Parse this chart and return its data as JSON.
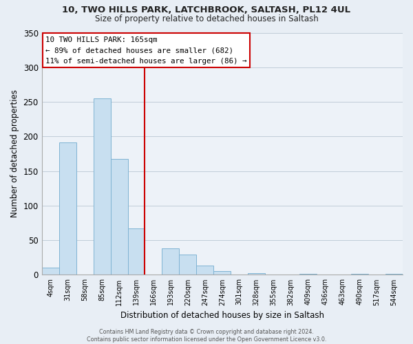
{
  "title1": "10, TWO HILLS PARK, LATCHBROOK, SALTASH, PL12 4UL",
  "title2": "Size of property relative to detached houses in Saltash",
  "xlabel": "Distribution of detached houses by size in Saltash",
  "ylabel": "Number of detached properties",
  "bar_labels": [
    "4sqm",
    "31sqm",
    "58sqm",
    "85sqm",
    "112sqm",
    "139sqm",
    "166sqm",
    "193sqm",
    "220sqm",
    "247sqm",
    "274sqm",
    "301sqm",
    "328sqm",
    "355sqm",
    "382sqm",
    "409sqm",
    "436sqm",
    "463sqm",
    "490sqm",
    "517sqm",
    "544sqm"
  ],
  "bar_values": [
    10,
    191,
    0,
    255,
    168,
    67,
    0,
    38,
    29,
    13,
    5,
    0,
    2,
    0,
    0,
    1,
    0,
    0,
    1,
    0,
    1
  ],
  "bar_color": "#c8dff0",
  "bar_edge_color": "#7fb3d3",
  "vline_x_index": 6,
  "vline_color": "#cc0000",
  "ylim": [
    0,
    350
  ],
  "yticks": [
    0,
    50,
    100,
    150,
    200,
    250,
    300,
    350
  ],
  "annotation_title": "10 TWO HILLS PARK: 165sqm",
  "annotation_line1": "← 89% of detached houses are smaller (682)",
  "annotation_line2": "11% of semi-detached houses are larger (86) →",
  "annotation_box_color": "#ffffff",
  "annotation_box_edge": "#cc0000",
  "footer1": "Contains HM Land Registry data © Crown copyright and database right 2024.",
  "footer2": "Contains public sector information licensed under the Open Government Licence v3.0.",
  "background_color": "#e8eef5",
  "plot_background_color": "#edf2f8",
  "grid_color": "#c0ccd8"
}
